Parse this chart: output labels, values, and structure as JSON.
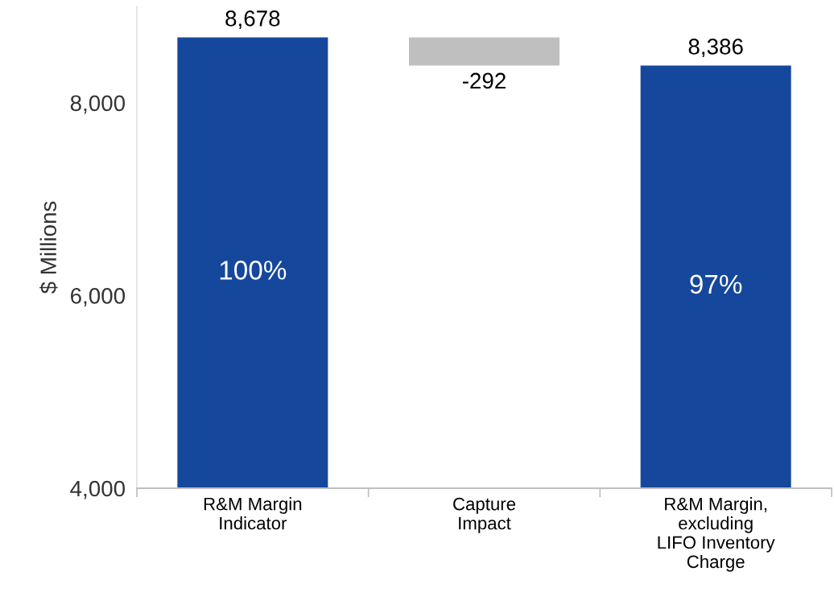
{
  "chart_data": {
    "type": "bar",
    "ylabel": "$ Millions",
    "categories": [
      "R&M Margin\nIndicator",
      "Capture\nImpact",
      "R&M Margin,\nexcluding\nLIFO Inventory\nCharge"
    ],
    "values": [
      8678,
      -292,
      8386
    ],
    "base": [
      0,
      8678,
      0
    ],
    "colors": [
      "#15479c",
      "#bfbfbf",
      "#15479c"
    ],
    "value_labels": [
      "8,678",
      "-292",
      "8,386"
    ],
    "annotations": [
      "100%",
      "97%"
    ],
    "ylim": [
      4000,
      9000
    ],
    "yticks": [
      {
        "value": 4000,
        "label": "4,000"
      },
      {
        "value": 6000,
        "label": "6,000"
      },
      {
        "value": 8000,
        "label": "8,000"
      }
    ],
    "grid": false,
    "legend": false
  }
}
